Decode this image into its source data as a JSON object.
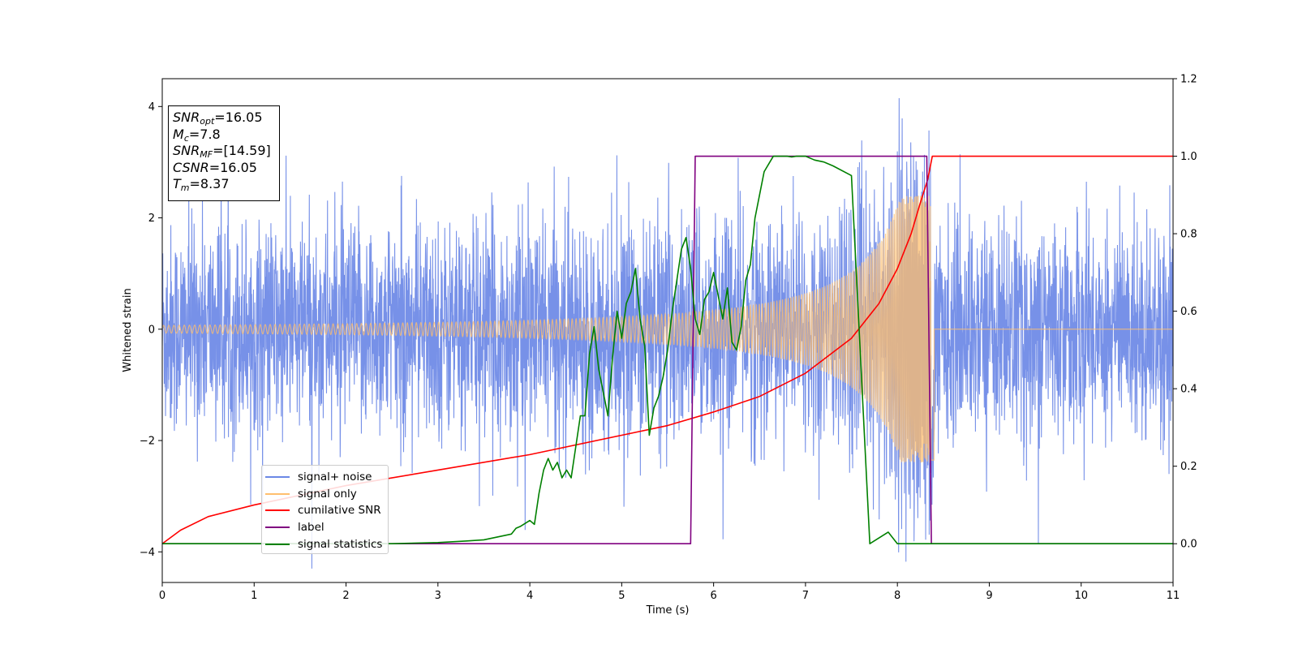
{
  "chart_data": {
    "type": "line",
    "xlabel": "Time (s)",
    "ylabel": "Whitened strain",
    "xlim": [
      0,
      11
    ],
    "ylim_left": [
      -4.55,
      4.5
    ],
    "ylim_right": [
      -0.1,
      1.2
    ],
    "x_ticks": [
      "0",
      "1",
      "2",
      "3",
      "4",
      "5",
      "6",
      "7",
      "8",
      "9",
      "10",
      "11"
    ],
    "y_ticks_left": [
      "4",
      "2",
      "0",
      "−2",
      "−4"
    ],
    "y_ticks_right": [
      "1.2",
      "1.0",
      "0.8",
      "0.6",
      "0.4",
      "0.2",
      "0.0"
    ],
    "grid": false,
    "legend_position": "bottom-left",
    "annotation": {
      "snr_opt_label": "SNR",
      "snr_opt_sub": "opt",
      "snr_opt_value": "=16.05",
      "mc_label": "M",
      "mc_sub": "c",
      "mc_value": "=7.8",
      "snr_mf_label": "SNR",
      "snr_mf_sub": "MF",
      "snr_mf_value": "=[14.59]",
      "csnr_label": "CSNR",
      "csnr_value": "=16.05",
      "tm_label": "T",
      "tm_sub": "m",
      "tm_value": "=8.37"
    },
    "series": [
      {
        "name": "signal+ noise",
        "axis": "left",
        "color": "#6b88e6",
        "description_of_values": "whitened gaussian noise with amplitude ~±2, spikes up to ~4, chirp added near 8.37 s",
        "noise_sigma": 1.0,
        "merger_time": 8.37
      },
      {
        "name": "signal only",
        "axis": "left",
        "color": "#ffbf6e",
        "chirp_amplitude_start": 0.07,
        "chirp_amplitude_peak": 2.4,
        "merger_time": 8.37
      },
      {
        "name": "cumilative SNR",
        "axis": "right",
        "color": "#ff0000",
        "x": [
          0,
          0.2,
          0.5,
          1,
          2,
          3,
          4,
          5,
          5.5,
          6,
          6.5,
          7,
          7.5,
          7.8,
          8.0,
          8.15,
          8.25,
          8.33,
          8.38,
          8.4,
          11
        ],
        "y": [
          0.0,
          0.035,
          0.07,
          0.1,
          0.15,
          0.19,
          0.23,
          0.28,
          0.305,
          0.34,
          0.38,
          0.44,
          0.53,
          0.62,
          0.71,
          0.8,
          0.88,
          0.94,
          1.0,
          1.0,
          1.0
        ]
      },
      {
        "name": "label",
        "axis": "right",
        "color": "#800080",
        "x": [
          0,
          5.75,
          5.8,
          8.32,
          8.37,
          11
        ],
        "y": [
          0,
          0,
          1,
          1,
          0,
          0
        ]
      },
      {
        "name": "signal statistics",
        "axis": "right",
        "color": "#008000",
        "x": [
          0,
          2.5,
          3.0,
          3.3,
          3.5,
          3.7,
          3.8,
          3.85,
          3.9,
          4.0,
          4.05,
          4.1,
          4.15,
          4.2,
          4.25,
          4.3,
          4.35,
          4.4,
          4.45,
          4.5,
          4.55,
          4.6,
          4.65,
          4.7,
          4.75,
          4.8,
          4.85,
          4.9,
          4.95,
          5.0,
          5.05,
          5.1,
          5.15,
          5.2,
          5.25,
          5.3,
          5.35,
          5.4,
          5.45,
          5.5,
          5.55,
          5.6,
          5.65,
          5.7,
          5.75,
          5.8,
          5.85,
          5.9,
          5.95,
          6.0,
          6.05,
          6.1,
          6.15,
          6.2,
          6.25,
          6.3,
          6.35,
          6.4,
          6.45,
          6.5,
          6.55,
          6.6,
          6.65,
          6.7,
          6.75,
          6.8,
          6.85,
          6.9,
          6.95,
          7.0,
          7.05,
          7.1,
          7.2,
          7.3,
          7.5,
          7.7,
          7.9,
          8.0,
          8.05,
          8.1,
          8.15,
          8.2,
          8.25,
          8.3,
          8.33,
          8.35,
          8.37,
          8.4,
          8.45,
          8.5,
          11
        ],
        "y": [
          0.0,
          0.0,
          0.003,
          0.007,
          0.01,
          0.02,
          0.025,
          0.04,
          0.045,
          0.06,
          0.05,
          0.13,
          0.19,
          0.22,
          0.19,
          0.21,
          0.17,
          0.19,
          0.17,
          0.25,
          0.33,
          0.33,
          0.49,
          0.56,
          0.45,
          0.39,
          0.33,
          0.48,
          0.6,
          0.53,
          0.62,
          0.65,
          0.71,
          0.58,
          0.51,
          0.28,
          0.35,
          0.38,
          0.43,
          0.5,
          0.6,
          0.68,
          0.76,
          0.79,
          0.71,
          0.58,
          0.54,
          0.63,
          0.65,
          0.7,
          0.64,
          0.58,
          0.66,
          0.52,
          0.5,
          0.56,
          0.68,
          0.72,
          0.84,
          0.9,
          0.96,
          0.98,
          1.0,
          1.0,
          1.0,
          1.0,
          0.998,
          1.0,
          1.0,
          1.0,
          0.995,
          0.99,
          0.985,
          0.975,
          0.95,
          0.0,
          0.03,
          0.0,
          0.0,
          0.0,
          0.0,
          0.0,
          0.0,
          0.0,
          0.0,
          0.0,
          0.0,
          0.0,
          0.0,
          0.0,
          0.0
        ]
      }
    ]
  }
}
